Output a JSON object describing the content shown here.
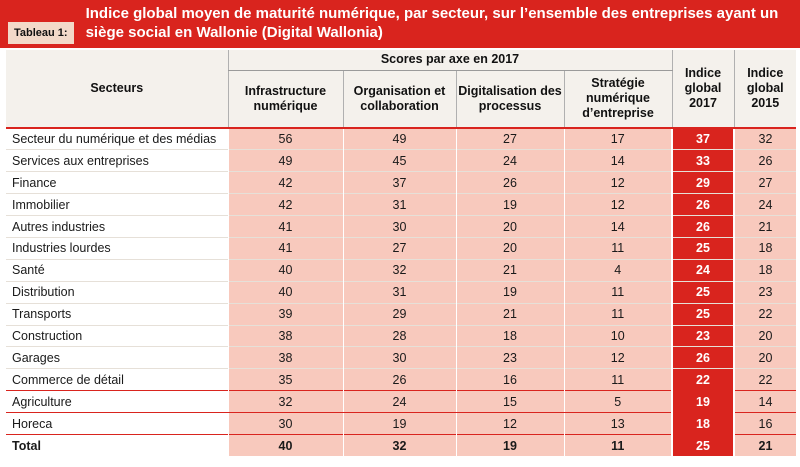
{
  "tag": "Tableau 1:",
  "title": "Indice global moyen de maturité numérique, par secteur, sur l’ensemble des entreprises ayant un siège social en Wallonie (Digital Wallonia)",
  "headers": {
    "secteurs": "Secteurs",
    "group": "Scores par axe en 2017",
    "infra": "Infrastructure numérique",
    "orga": "Organisation et collaboration",
    "digit": "Digitalisation des processus",
    "strat": "Stratégie numérique d’entreprise",
    "ig2017": "Indice global 2017",
    "ig2015": "Indice global 2015"
  },
  "rows": [
    {
      "name": "Secteur du numérique et des médias",
      "infra": "56",
      "orga": "49",
      "digit": "27",
      "strat": "17",
      "ig2017": "37",
      "ig2015": "32"
    },
    {
      "name": "Services aux entreprises",
      "infra": "49",
      "orga": "45",
      "digit": "24",
      "strat": "14",
      "ig2017": "33",
      "ig2015": "26"
    },
    {
      "name": "Finance",
      "infra": "42",
      "orga": "37",
      "digit": "26",
      "strat": "12",
      "ig2017": "29",
      "ig2015": "27"
    },
    {
      "name": "Immobilier",
      "infra": "42",
      "orga": "31",
      "digit": "19",
      "strat": "12",
      "ig2017": "26",
      "ig2015": "24"
    },
    {
      "name": "Autres industries",
      "infra": "41",
      "orga": "30",
      "digit": "20",
      "strat": "14",
      "ig2017": "26",
      "ig2015": "21"
    },
    {
      "name": "Industries lourdes",
      "infra": "41",
      "orga": "27",
      "digit": "20",
      "strat": "11",
      "ig2017": "25",
      "ig2015": "18"
    },
    {
      "name": "Santé",
      "infra": "40",
      "orga": "32",
      "digit": "21",
      "strat": "4",
      "ig2017": "24",
      "ig2015": "18"
    },
    {
      "name": "Distribution",
      "infra": "40",
      "orga": "31",
      "digit": "19",
      "strat": "11",
      "ig2017": "25",
      "ig2015": "23"
    },
    {
      "name": "Transports",
      "infra": "39",
      "orga": "29",
      "digit": "21",
      "strat": "11",
      "ig2017": "25",
      "ig2015": "22"
    },
    {
      "name": "Construction",
      "infra": "38",
      "orga": "28",
      "digit": "18",
      "strat": "10",
      "ig2017": "23",
      "ig2015": "20"
    },
    {
      "name": "Garages",
      "infra": "38",
      "orga": "30",
      "digit": "23",
      "strat": "12",
      "ig2017": "26",
      "ig2015": "20"
    },
    {
      "name": "Commerce de détail",
      "infra": "35",
      "orga": "26",
      "digit": "16",
      "strat": "11",
      "ig2017": "22",
      "ig2015": "22"
    },
    {
      "name": "Agriculture",
      "infra": "32",
      "orga": "24",
      "digit": "15",
      "strat": "5",
      "ig2017": "19",
      "ig2015": "14"
    },
    {
      "name": "Horeca",
      "infra": "30",
      "orga": "19",
      "digit": "12",
      "strat": "13",
      "ig2017": "18",
      "ig2015": "16"
    }
  ],
  "total": {
    "name": "Total",
    "infra": "40",
    "orga": "32",
    "digit": "19",
    "strat": "11",
    "ig2017": "25",
    "ig2015": "21"
  },
  "colors": {
    "accent_red": "#d9241e",
    "cell_pink": "#f8c9bd",
    "header_bg": "#f4f1ec"
  }
}
